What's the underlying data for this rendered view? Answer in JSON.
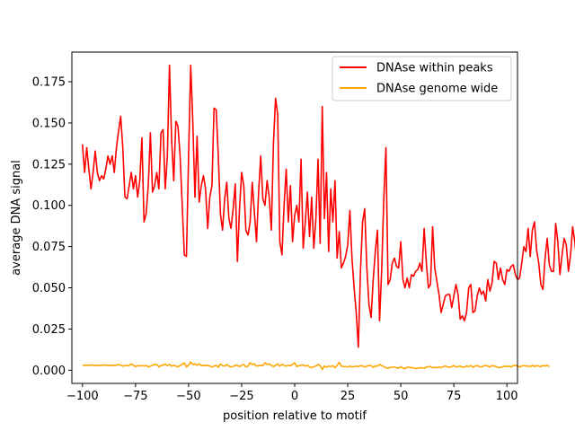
{
  "chart_data": {
    "type": "line",
    "title": "",
    "xlabel": "position relative to motif",
    "ylabel": "average DNA signal",
    "xlim": [
      -105,
      105
    ],
    "ylim": [
      -0.008,
      0.193
    ],
    "xticks": [
      -100,
      -75,
      -50,
      -25,
      0,
      25,
      50,
      75,
      100
    ],
    "xtick_labels": [
      "−100",
      "−75",
      "−50",
      "−25",
      "0",
      "25",
      "50",
      "75",
      "100"
    ],
    "yticks": [
      0.0,
      0.025,
      0.05,
      0.075,
      0.1,
      0.125,
      0.15,
      0.175
    ],
    "ytick_labels": [
      "0.000",
      "0.025",
      "0.050",
      "0.075",
      "0.100",
      "0.125",
      "0.150",
      "0.175"
    ],
    "grid": false,
    "legend_position": "top-right",
    "series": [
      {
        "name": "DNAse within peaks",
        "color": "#ff0000",
        "x_start": -100,
        "x_step": 1,
        "values": [
          0.137,
          0.12,
          0.135,
          0.122,
          0.11,
          0.12,
          0.133,
          0.12,
          0.115,
          0.118,
          0.116,
          0.122,
          0.13,
          0.125,
          0.13,
          0.12,
          0.135,
          0.145,
          0.154,
          0.135,
          0.105,
          0.104,
          0.112,
          0.12,
          0.11,
          0.118,
          0.105,
          0.115,
          0.141,
          0.09,
          0.095,
          0.112,
          0.144,
          0.108,
          0.112,
          0.12,
          0.11,
          0.144,
          0.146,
          0.11,
          0.13,
          0.185,
          0.14,
          0.115,
          0.151,
          0.148,
          0.13,
          0.1,
          0.07,
          0.069,
          0.13,
          0.185,
          0.15,
          0.105,
          0.142,
          0.102,
          0.112,
          0.118,
          0.11,
          0.086,
          0.105,
          0.112,
          0.159,
          0.158,
          0.13,
          0.095,
          0.085,
          0.104,
          0.114,
          0.092,
          0.086,
          0.098,
          0.113,
          0.066,
          0.098,
          0.12,
          0.112,
          0.085,
          0.082,
          0.09,
          0.114,
          0.096,
          0.078,
          0.108,
          0.13,
          0.104,
          0.1,
          0.115,
          0.105,
          0.085,
          0.138,
          0.165,
          0.155,
          0.078,
          0.07,
          0.1,
          0.122,
          0.09,
          0.112,
          0.078,
          0.094,
          0.1,
          0.09,
          0.128,
          0.074,
          0.09,
          0.108,
          0.081,
          0.105,
          0.074,
          0.092,
          0.128,
          0.077,
          0.16,
          0.092,
          0.12,
          0.072,
          0.11,
          0.09,
          0.115,
          0.068,
          0.084,
          0.062,
          0.065,
          0.069,
          0.076,
          0.097,
          0.068,
          0.05,
          0.035,
          0.014,
          0.06,
          0.09,
          0.098,
          0.062,
          0.04,
          0.032,
          0.055,
          0.072,
          0.085,
          0.03,
          0.061,
          0.104,
          0.135,
          0.052,
          0.055,
          0.065,
          0.068,
          0.063,
          0.062,
          0.078,
          0.055,
          0.05,
          0.056,
          0.05,
          0.058,
          0.057,
          0.06,
          0.061,
          0.065,
          0.06,
          0.086,
          0.066,
          0.05,
          0.052,
          0.087,
          0.062,
          0.054,
          0.046,
          0.035,
          0.04,
          0.045,
          0.046,
          0.046,
          0.038,
          0.045,
          0.052,
          0.046,
          0.031,
          0.033,
          0.03,
          0.035,
          0.05,
          0.052,
          0.035,
          0.036,
          0.045,
          0.05,
          0.046,
          0.048,
          0.042,
          0.055,
          0.048,
          0.053,
          0.066,
          0.065,
          0.055,
          0.062,
          0.055,
          0.052,
          0.061,
          0.06,
          0.063,
          0.064,
          0.058,
          0.055,
          0.056,
          0.065,
          0.075,
          0.072,
          0.086,
          0.069,
          0.085,
          0.09,
          0.073,
          0.065,
          0.052,
          0.049,
          0.068,
          0.08,
          0.064,
          0.06,
          0.06,
          0.089,
          0.078,
          0.058,
          0.07,
          0.08,
          0.076,
          0.06,
          0.07,
          0.087,
          0.078,
          0.065
        ]
      },
      {
        "name": "DNAse genome wide",
        "color": "#ffa500",
        "x_start": -100,
        "x_step": 1,
        "values": [
          0.003,
          0.003,
          0.003,
          0.003,
          0.0032,
          0.003,
          0.003,
          0.0028,
          0.003,
          0.003,
          0.0032,
          0.003,
          0.003,
          0.0028,
          0.003,
          0.003,
          0.003,
          0.0035,
          0.003,
          0.0025,
          0.003,
          0.0028,
          0.0028,
          0.0038,
          0.003,
          0.0022,
          0.0028,
          0.0025,
          0.003,
          0.0025,
          0.003,
          0.002,
          0.0025,
          0.003,
          0.0035,
          0.0035,
          0.002,
          0.003,
          0.003,
          0.0038,
          0.0028,
          0.0035,
          0.0025,
          0.003,
          0.0025,
          0.002,
          0.003,
          0.0035,
          0.0045,
          0.002,
          0.003,
          0.005,
          0.0035,
          0.0038,
          0.003,
          0.0038,
          0.0028,
          0.003,
          0.0028,
          0.003,
          0.0025,
          0.002,
          0.0025,
          0.003,
          0.0018,
          0.0038,
          0.0028,
          0.0025,
          0.0035,
          0.0025,
          0.002,
          0.0022,
          0.003,
          0.003,
          0.0022,
          0.003,
          0.0035,
          0.002,
          0.0025,
          0.0045,
          0.0035,
          0.0038,
          0.0025,
          0.0028,
          0.003,
          0.0028,
          0.0045,
          0.0035,
          0.0038,
          0.003,
          0.0022,
          0.003,
          0.0038,
          0.0025,
          0.0035,
          0.003,
          0.0025,
          0.003,
          0.0028,
          0.0035,
          0.0045,
          0.0022,
          0.0028,
          0.003,
          0.0032,
          0.0025,
          0.003,
          0.002,
          0.0015,
          0.0022,
          0.0025,
          0.0035,
          0.0028,
          0.0005,
          0.0025,
          0.0018,
          0.0025,
          0.0022,
          0.0028,
          0.0015,
          0.003,
          0.0048,
          0.0025,
          0.0022,
          0.0022,
          0.002,
          0.0025,
          0.002,
          0.0022,
          0.0025,
          0.0022,
          0.0028,
          0.0025,
          0.002,
          0.0025,
          0.0028,
          0.0028,
          0.0018,
          0.0025,
          0.0025,
          0.0035,
          0.0028,
          0.0022,
          0.0015,
          0.0012,
          0.0018,
          0.0018,
          0.002,
          0.0015,
          0.0012,
          0.0022,
          0.0012,
          0.001,
          0.0018,
          0.0018,
          0.0015,
          0.0015,
          0.001,
          0.0012,
          0.0015,
          0.0015,
          0.0012,
          0.0018,
          0.0022,
          0.0022,
          0.0015,
          0.0018,
          0.0015,
          0.002,
          0.0015,
          0.0022,
          0.0025,
          0.002,
          0.0018,
          0.0022,
          0.0028,
          0.002,
          0.0022,
          0.0025,
          0.0018,
          0.002,
          0.0025,
          0.0022,
          0.0028,
          0.0018,
          0.0025,
          0.0028,
          0.0022,
          0.002,
          0.0025,
          0.003,
          0.0025,
          0.002,
          0.0028,
          0.0025,
          0.0022,
          0.0015,
          0.0018,
          0.002,
          0.0025,
          0.0022,
          0.0025,
          0.002,
          0.0028,
          0.003,
          0.0025,
          0.002,
          0.0025,
          0.003,
          0.0025,
          0.0025,
          0.0022,
          0.003,
          0.0022,
          0.0028,
          0.0025,
          0.0022,
          0.003,
          0.0025,
          0.003,
          0.0022
        ]
      }
    ]
  }
}
